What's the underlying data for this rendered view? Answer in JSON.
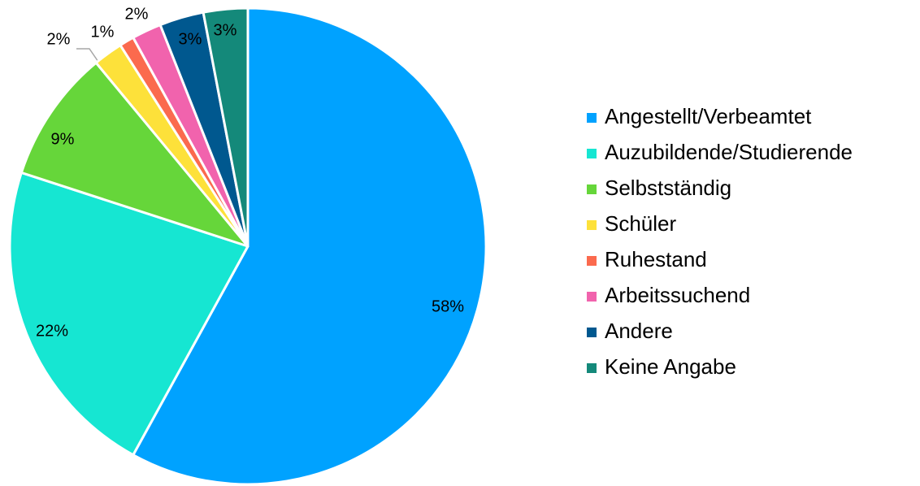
{
  "chart_data": {
    "type": "pie",
    "categories": [
      "Angestellt/Verbeamtet",
      "Auzubildende/Studierende",
      "Selbstständig",
      "Schüler",
      "Ruhestand",
      "Arbeitssuchend",
      "Andere",
      "Keine Angabe"
    ],
    "values": [
      58,
      22,
      9,
      2,
      1,
      2,
      3,
      3
    ],
    "value_labels": [
      "58%",
      "22%",
      "9%",
      "2%",
      "1%",
      "2%",
      "3%",
      "3%"
    ],
    "colors": [
      "#00a2ff",
      "#16e6d2",
      "#66d63a",
      "#fde13a",
      "#fb6a4e",
      "#f163ad",
      "#00588f",
      "#14897a"
    ],
    "legend": "right"
  }
}
